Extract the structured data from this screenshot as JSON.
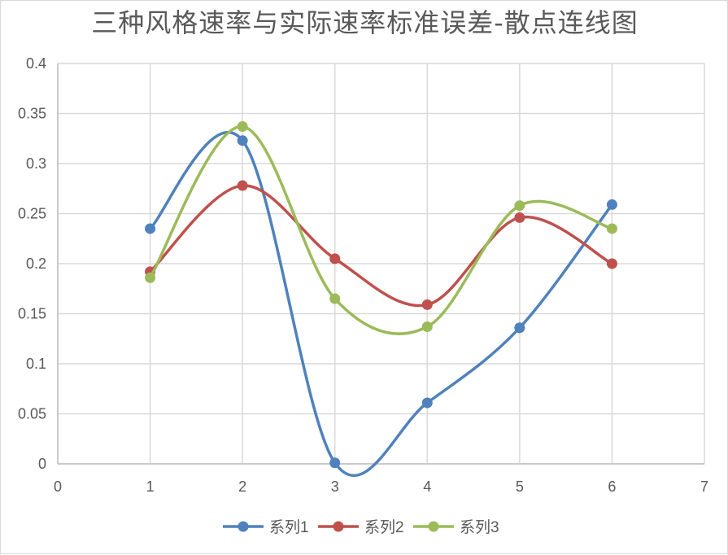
{
  "chart_data": {
    "type": "line",
    "title": "三种风格速率与实际速率标准误差-散点连线图",
    "xlabel": "",
    "ylabel": "",
    "xlim": [
      0,
      7
    ],
    "ylim": [
      0,
      0.4
    ],
    "x_ticks": [
      "0",
      "1",
      "2",
      "3",
      "4",
      "5",
      "6",
      "7"
    ],
    "y_ticks": [
      "0",
      "0.05",
      "0.1",
      "0.15",
      "0.2",
      "0.25",
      "0.3",
      "0.35",
      "0.4"
    ],
    "grid": true,
    "smooth": true,
    "legend_position": "bottom",
    "x": [
      1,
      2,
      3,
      4,
      5,
      6
    ],
    "series": [
      {
        "name": "系列1",
        "color": "#4f81bd",
        "values": [
          0.235,
          0.323,
          0.001,
          0.061,
          0.136,
          0.259
        ]
      },
      {
        "name": "系列2",
        "color": "#c0504d",
        "values": [
          0.192,
          0.278,
          0.205,
          0.159,
          0.246,
          0.2
        ]
      },
      {
        "name": "系列3",
        "color": "#9bbb59",
        "values": [
          0.186,
          0.337,
          0.165,
          0.137,
          0.258,
          0.235
        ]
      }
    ]
  }
}
